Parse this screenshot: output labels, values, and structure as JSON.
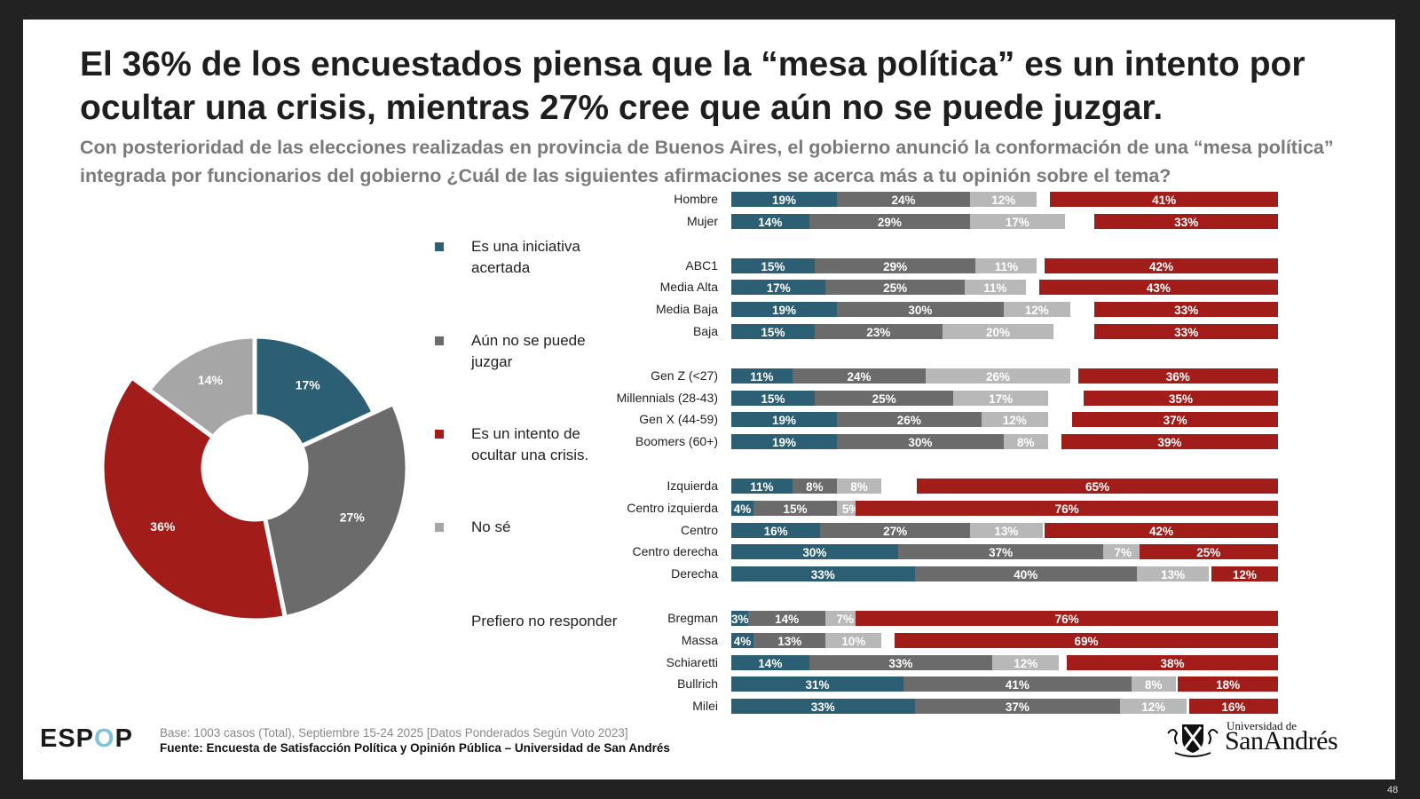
{
  "slide": {
    "title": "El 36% de los encuestados piensa que la “mesa política” es un intento por ocultar una crisis, mientras 27% cree que aún no se puede juzgar.",
    "subtitle": "Con posterioridad de las elecciones realizadas en provincia de Buenos Aires, el gobierno anunció la conformación de una “mesa política” integrada por funcionarios del gobierno ¿Cuál de las siguientes afirmaciones se acerca más a tu opinión sobre el tema?",
    "page_number": "48"
  },
  "colors": {
    "acertada": "#2c5f74",
    "no_juzgar": "#6b6b6b",
    "no_se": "#b8b8b8",
    "ocultar": "#a21d1a",
    "no_se_pie": "#a6a6a6"
  },
  "legend": [
    {
      "key": "acertada",
      "label": "Es una iniciativa acertada",
      "line1": "Es una iniciativa",
      "line2": "acertada"
    },
    {
      "key": "no_juzgar",
      "label": "Aún no se puede juzgar",
      "line1": "Aún no se puede",
      "line2": "juzgar"
    },
    {
      "key": "ocultar",
      "label": "Es un intento de ocultar una crisis.",
      "line1": "Es un intento de",
      "line2": "ocultar una crisis."
    },
    {
      "key": "no_se",
      "label": "No sé",
      "line1": "No sé",
      "line2": ""
    },
    {
      "key": "prefiero",
      "label": "Prefiero no responder",
      "line1": "Prefiero no responder",
      "line2": ""
    }
  ],
  "footer": {
    "logo_text_a": "ESP",
    "logo_text_o": "O",
    "logo_text_b": "P",
    "base": "Base: 1003 casos (Total), Septiembre 15-24 2025 [Datos Ponderados Según Voto 2023]",
    "source": "Fuente: Encuesta de Satisfacción Política y Opinión Pública – Universidad de San Andrés",
    "university_small": "Universidad de",
    "university_big": "SanAndrés"
  },
  "chart_data": [
    {
      "type": "pie",
      "subtype": "donut",
      "title": "",
      "categories": [
        "Es una iniciativa acertada",
        "Aún no se puede juzgar",
        "Es un intento de ocultar una crisis.",
        "No sé",
        "Prefiero no responder"
      ],
      "values": [
        17,
        27,
        36,
        14,
        0
      ],
      "labels": [
        "17%",
        "27%",
        "36%",
        "14%",
        ""
      ],
      "legend": "right"
    },
    {
      "type": "bar",
      "orientation": "horizontal",
      "stacked": true,
      "title": "",
      "series": [
        {
          "name": "Es una iniciativa acertada",
          "key": "acertada"
        },
        {
          "name": "Aún no se puede juzgar",
          "key": "no_juzgar"
        },
        {
          "name": "No sé",
          "key": "no_se"
        },
        {
          "name": "Es un intento de ocultar una crisis.",
          "key": "ocultar",
          "aligned": "right"
        }
      ],
      "groups": [
        {
          "rows": [
            {
              "label": "Hombre",
              "values": [
                19,
                24,
                12,
                41
              ]
            },
            {
              "label": "Mujer",
              "values": [
                14,
                29,
                17,
                33
              ]
            }
          ]
        },
        {
          "rows": [
            {
              "label": "ABC1",
              "values": [
                15,
                29,
                11,
                42
              ]
            },
            {
              "label": "Media Alta",
              "values": [
                17,
                25,
                11,
                43
              ]
            },
            {
              "label": "Media Baja",
              "values": [
                19,
                30,
                12,
                33
              ]
            },
            {
              "label": "Baja",
              "values": [
                15,
                23,
                20,
                33
              ]
            }
          ]
        },
        {
          "rows": [
            {
              "label": "Gen Z (<27)",
              "values": [
                11,
                24,
                26,
                36
              ]
            },
            {
              "label": "Millennials (28-43)",
              "values": [
                15,
                25,
                17,
                35
              ]
            },
            {
              "label": "Gen X (44-59)",
              "values": [
                19,
                26,
                12,
                37
              ]
            },
            {
              "label": "Boomers (60+)",
              "values": [
                19,
                30,
                8,
                39
              ]
            }
          ]
        },
        {
          "rows": [
            {
              "label": "Izquierda",
              "values": [
                11,
                8,
                8,
                65
              ]
            },
            {
              "label": "Centro izquierda",
              "values": [
                4,
                15,
                5,
                76
              ]
            },
            {
              "label": "Centro",
              "values": [
                16,
                27,
                13,
                42
              ]
            },
            {
              "label": "Centro derecha",
              "values": [
                30,
                37,
                7,
                25
              ]
            },
            {
              "label": "Derecha",
              "values": [
                33,
                40,
                13,
                12
              ]
            }
          ]
        },
        {
          "rows": [
            {
              "label": "Bregman",
              "values": [
                3,
                14,
                7,
                76
              ]
            },
            {
              "label": "Massa",
              "values": [
                4,
                13,
                10,
                69
              ]
            },
            {
              "label": "Schiaretti",
              "values": [
                14,
                33,
                12,
                38
              ]
            },
            {
              "label": "Bullrich",
              "values": [
                31,
                41,
                8,
                18
              ]
            },
            {
              "label": "Milei",
              "values": [
                33,
                37,
                12,
                16
              ]
            }
          ]
        }
      ],
      "value_format": "{v}%",
      "axis_visible": false,
      "grid": false
    }
  ]
}
